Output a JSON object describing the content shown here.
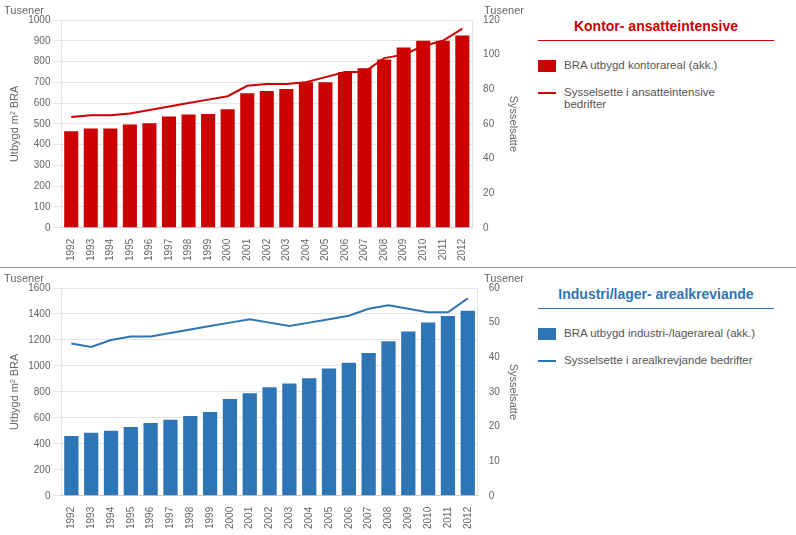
{
  "chart_data": [
    {
      "type": "bar",
      "title": "Kontor- ansatteintensive",
      "categories": [
        "1992",
        "1993",
        "1994",
        "1995",
        "1996",
        "1997",
        "1998",
        "1999",
        "2000",
        "2001",
        "2002",
        "2003",
        "2004",
        "2005",
        "2006",
        "2007",
        "2008",
        "2009",
        "2010",
        "2011",
        "2012"
      ],
      "series": [
        {
          "name": "BRA utbygd kontorareal (akk.)",
          "color": "#CC0000",
          "values": [
            465,
            478,
            478,
            497,
            503,
            535,
            545,
            548,
            570,
            648,
            658,
            668,
            700,
            700,
            750,
            768,
            810,
            868,
            900,
            900,
            925
          ]
        },
        {
          "name": "Sysselsette i ansatteintensive\nbedrifter",
          "type": "line",
          "axis": "y2",
          "color": "#CC0000",
          "values": [
            64,
            65,
            65,
            66,
            68,
            70,
            72,
            74,
            76,
            82,
            83,
            83,
            84,
            87,
            90,
            90,
            98,
            100,
            105,
            108,
            115
          ]
        }
      ],
      "y_label": "Utbygd m² BRA",
      "y2_label": "Sysselsatte",
      "annotations": [
        "Tusener",
        "Tusener"
      ],
      "ylim": [
        0,
        1000
      ],
      "yticks": [
        0,
        100,
        200,
        300,
        400,
        500,
        600,
        700,
        800,
        900,
        1000
      ],
      "y2lim": [
        0,
        120
      ],
      "y2ticks": [
        0,
        20,
        40,
        60,
        80,
        100,
        120
      ],
      "grid": true,
      "legend": "right"
    },
    {
      "type": "bar",
      "title": "Industri/lager- arealkreviande",
      "categories": [
        "1992",
        "1993",
        "1994",
        "1995",
        "1996",
        "1997",
        "1998",
        "1999",
        "2000",
        "2001",
        "2002",
        "2003",
        "2004",
        "2005",
        "2006",
        "2007",
        "2008",
        "2009",
        "2010",
        "2011",
        "2012"
      ],
      "series": [
        {
          "name": "BRA utbygd industri-/lagerareal (akk.)",
          "color": "#2E75B6",
          "values": [
            460,
            485,
            500,
            530,
            560,
            585,
            615,
            645,
            745,
            790,
            835,
            865,
            905,
            980,
            1025,
            1100,
            1190,
            1265,
            1335,
            1385,
            1425
          ]
        },
        {
          "name": "Sysselsette i arealkrevjande bedrifter",
          "type": "line",
          "axis": "y2",
          "color": "#2E75B6",
          "values": [
            44,
            43,
            45,
            46,
            46,
            47,
            48,
            49,
            50,
            51,
            50,
            49,
            50,
            51,
            52,
            54,
            55,
            54,
            53,
            53,
            57
          ]
        }
      ],
      "y_label": "Utbygd m² BRA",
      "y2_label": "Sysselsatte",
      "annotations": [
        "Tusener",
        "Tusener"
      ],
      "ylim": [
        0,
        1600
      ],
      "yticks": [
        0,
        200,
        400,
        600,
        800,
        1000,
        1200,
        1400,
        1600
      ],
      "y2lim": [
        0,
        60
      ],
      "y2ticks": [
        0,
        10,
        20,
        30,
        40,
        50,
        60
      ],
      "grid": true,
      "legend": "right"
    }
  ]
}
